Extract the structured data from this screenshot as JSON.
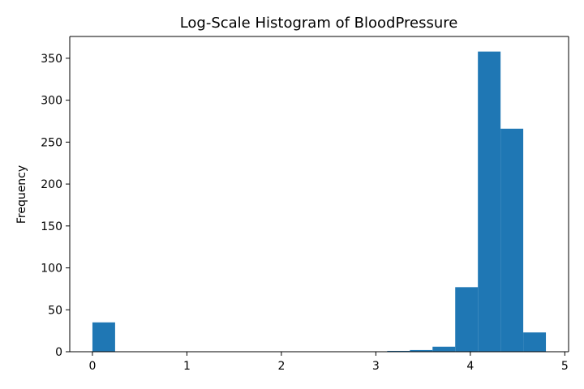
{
  "chart_data": {
    "type": "bar",
    "title": "Log-Scale Histogram of BloodPressure",
    "xlabel": "",
    "ylabel": "Frequency",
    "xlim": [
      -0.24,
      5.04
    ],
    "ylim": [
      0,
      376
    ],
    "grid": false,
    "bar_color": "#1f77b4",
    "bin_width": 0.24,
    "bins": [
      {
        "x0": 0.0,
        "count": 35
      },
      {
        "x0": 0.24,
        "count": 0
      },
      {
        "x0": 0.48,
        "count": 0
      },
      {
        "x0": 0.72,
        "count": 0
      },
      {
        "x0": 0.96,
        "count": 0
      },
      {
        "x0": 1.2,
        "count": 0
      },
      {
        "x0": 1.44,
        "count": 0
      },
      {
        "x0": 1.68,
        "count": 0
      },
      {
        "x0": 1.92,
        "count": 0
      },
      {
        "x0": 2.16,
        "count": 0
      },
      {
        "x0": 2.4,
        "count": 0
      },
      {
        "x0": 2.64,
        "count": 0
      },
      {
        "x0": 2.88,
        "count": 0
      },
      {
        "x0": 3.12,
        "count": 1
      },
      {
        "x0": 3.36,
        "count": 2
      },
      {
        "x0": 3.6,
        "count": 6
      },
      {
        "x0": 3.84,
        "count": 77
      },
      {
        "x0": 4.08,
        "count": 358
      },
      {
        "x0": 4.32,
        "count": 266
      },
      {
        "x0": 4.56,
        "count": 23
      }
    ],
    "x_ticks": [
      "0",
      "1",
      "2",
      "3",
      "4",
      "5"
    ],
    "y_ticks": [
      "0",
      "50",
      "100",
      "150",
      "200",
      "250",
      "300",
      "350"
    ]
  }
}
